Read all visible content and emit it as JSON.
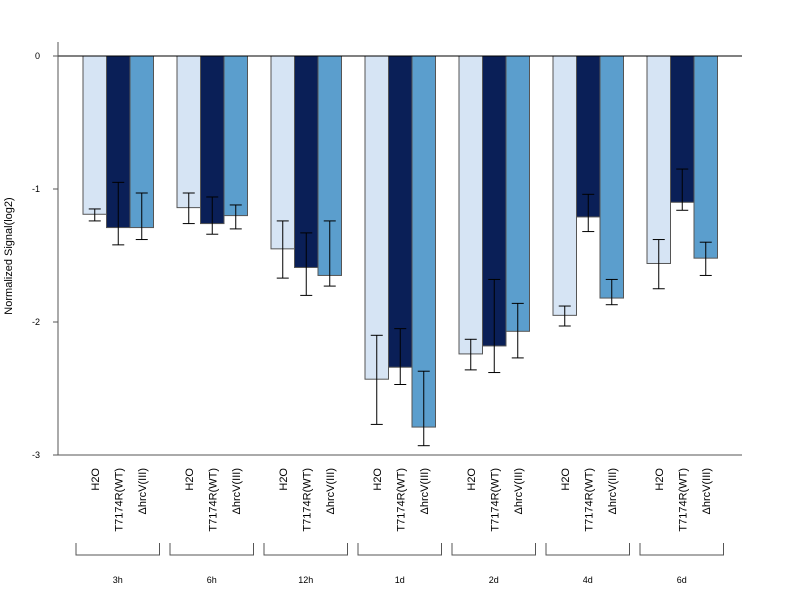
{
  "chart_data": {
    "type": "bar",
    "ylabel": "Normalized Signal(log2)",
    "ylim": [
      -3,
      0
    ],
    "yticks": [
      "0",
      "-1",
      "-2",
      "-3"
    ],
    "ytick_values": [
      0,
      -1,
      -2,
      -3
    ],
    "groups": [
      "3h",
      "6h",
      "12h",
      "1d",
      "2d",
      "4d",
      "6d"
    ],
    "series": [
      {
        "name": "H2O",
        "color": "#d6e4f4",
        "values": [
          -1.19,
          -1.14,
          -1.45,
          -2.43,
          -2.24,
          -1.95,
          -1.56
        ],
        "err_low": [
          -1.24,
          -1.26,
          -1.67,
          -2.77,
          -2.36,
          -2.03,
          -1.75
        ],
        "err_high": [
          -1.15,
          -1.03,
          -1.24,
          -2.1,
          -2.13,
          -1.88,
          -1.38
        ]
      },
      {
        "name": "T7174R(WT)",
        "color": "#0a1f57",
        "values": [
          -1.29,
          -1.26,
          -1.59,
          -2.34,
          -2.18,
          -1.21,
          -1.1
        ],
        "err_low": [
          -1.42,
          -1.34,
          -1.8,
          -2.47,
          -2.38,
          -1.32,
          -1.16
        ],
        "err_high": [
          -0.95,
          -1.06,
          -1.33,
          -2.05,
          -1.68,
          -1.04,
          -0.85
        ]
      },
      {
        "name": "ΔhrcV(III)",
        "color": "#5b9ecd",
        "values": [
          -1.29,
          -1.2,
          -1.65,
          -2.79,
          -2.07,
          -1.82,
          -1.52
        ],
        "err_low": [
          -1.38,
          -1.3,
          -1.73,
          -2.93,
          -2.27,
          -1.87,
          -1.65
        ],
        "err_high": [
          -1.03,
          -1.12,
          -1.24,
          -2.37,
          -1.86,
          -1.68,
          -1.4
        ]
      }
    ]
  }
}
